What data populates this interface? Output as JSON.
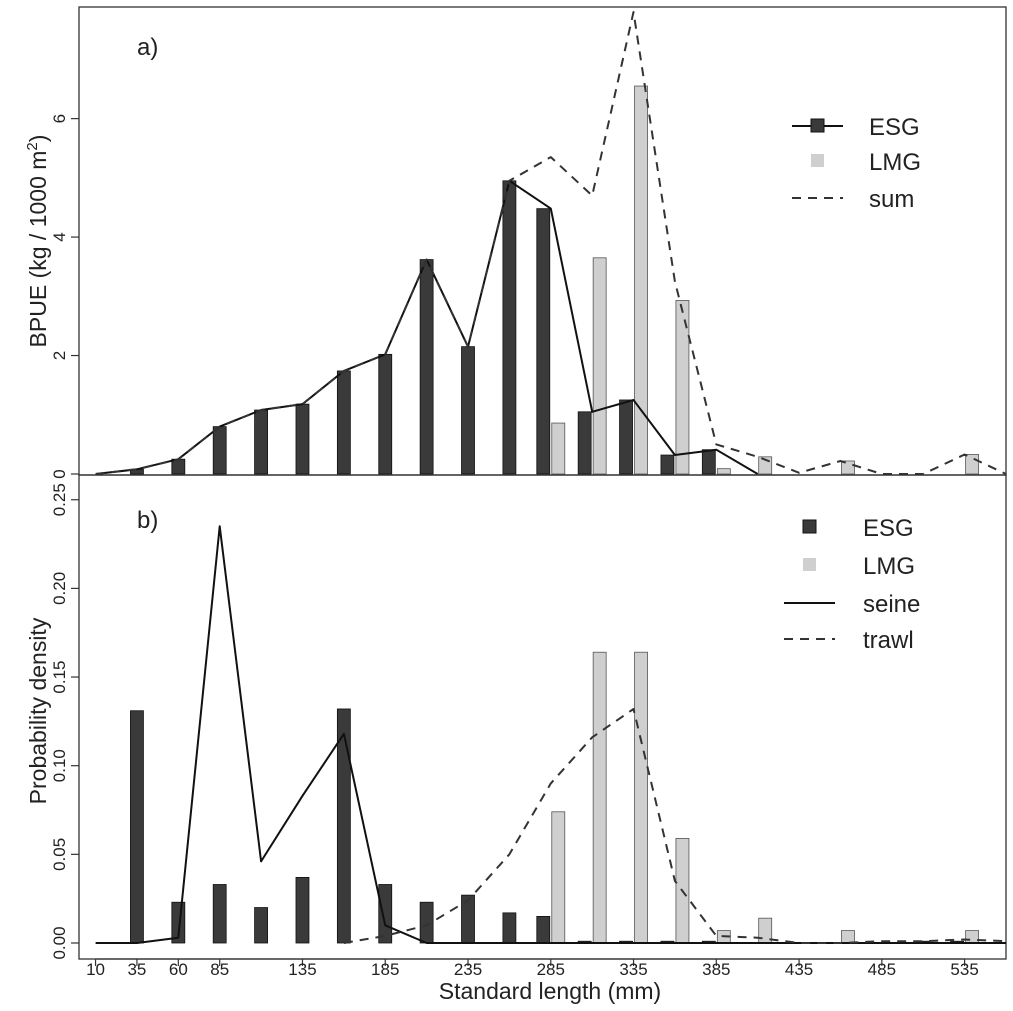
{
  "chart_data": [
    {
      "panel_label": "a)",
      "type": "bar",
      "ylabel": "BPUE (kg / 1000 m²)",
      "ylabel_main": "BPUE (kg / 1000 m",
      "ylabel_sup": "2",
      "ylabel_end": ")",
      "xlabel": "",
      "xlim": [
        0,
        560
      ],
      "ylim": [
        0,
        7.8
      ],
      "yticks": [
        0,
        2,
        4,
        6
      ],
      "ytick_labels": [
        "0",
        "2",
        "4",
        "6"
      ],
      "legend": {
        "position": "top-right",
        "entries": [
          {
            "label": "ESG",
            "style": "line-with-square"
          },
          {
            "label": "LMG",
            "style": "square"
          },
          {
            "label": "sum",
            "style": "dashed"
          }
        ]
      },
      "bars": {
        "ESG": {
          "x": [
            35,
            60,
            85,
            110,
            135,
            160,
            185,
            210,
            235,
            260,
            285,
            310,
            335,
            360,
            385
          ],
          "values": [
            0.08,
            0.25,
            0.8,
            1.08,
            1.18,
            1.74,
            2.02,
            3.62,
            2.15,
            4.95,
            4.48,
            1.05,
            1.25,
            0.32,
            0.41
          ]
        },
        "LMG": {
          "x": [
            285,
            310,
            335,
            360,
            385,
            410,
            460,
            535
          ],
          "values": [
            0.86,
            3.65,
            6.55,
            2.93,
            0.09,
            0.29,
            0.22,
            0.33
          ]
        }
      },
      "series": [
        {
          "name": "ESG",
          "x": [
            10,
            35,
            60,
            85,
            110,
            135,
            160,
            185,
            210,
            235,
            260,
            285,
            310,
            335,
            360,
            385,
            410
          ],
          "values": [
            0,
            0.08,
            0.25,
            0.8,
            1.08,
            1.18,
            1.74,
            2.02,
            3.62,
            2.15,
            4.95,
            4.48,
            1.05,
            1.25,
            0.32,
            0.41,
            0
          ]
        },
        {
          "name": "sum",
          "x": [
            10,
            35,
            60,
            85,
            110,
            135,
            160,
            185,
            210,
            235,
            260,
            285,
            310,
            335,
            360,
            385,
            410,
            435,
            460,
            485,
            510,
            535,
            560
          ],
          "values": [
            0,
            0.08,
            0.25,
            0.8,
            1.08,
            1.18,
            1.74,
            2.02,
            3.62,
            2.15,
            4.95,
            5.35,
            4.7,
            7.8,
            3.25,
            0.5,
            0.29,
            0.02,
            0.22,
            0,
            0,
            0.33,
            0
          ]
        }
      ]
    },
    {
      "panel_label": "b)",
      "type": "bar",
      "ylabel": "Probability density",
      "xlabel": "Standard length (mm)",
      "xlim": [
        0,
        560
      ],
      "ylim": [
        0,
        0.26
      ],
      "xticks": [
        10,
        35,
        60,
        85,
        135,
        185,
        235,
        285,
        335,
        385,
        435,
        485,
        535
      ],
      "xtick_labels": [
        "10",
        "35",
        "60",
        "85",
        "135",
        "185",
        "235",
        "285",
        "335",
        "385",
        "435",
        "485",
        "535"
      ],
      "yticks": [
        0,
        0.05,
        0.1,
        0.15,
        0.2,
        0.25
      ],
      "ytick_labels": [
        "0.00",
        "0.05",
        "0.10",
        "0.15",
        "0.20",
        "0.25"
      ],
      "legend": {
        "position": "top-right",
        "entries": [
          {
            "label": "ESG",
            "style": "square"
          },
          {
            "label": "LMG",
            "style": "square"
          },
          {
            "label": "seine",
            "style": "solid"
          },
          {
            "label": "trawl",
            "style": "dashed"
          }
        ]
      },
      "bars": {
        "ESG": {
          "x": [
            35,
            60,
            85,
            110,
            135,
            160,
            185,
            210,
            235,
            260,
            285,
            310,
            335,
            360,
            385,
            410,
            435,
            460,
            485,
            510,
            535
          ],
          "values": [
            0.131,
            0.023,
            0.033,
            0.02,
            0.037,
            0.132,
            0.033,
            0.023,
            0.027,
            0.017,
            0.015,
            0.001,
            0.001,
            0.001,
            0.001,
            0,
            0,
            0,
            0,
            0.001,
            0.001
          ]
        },
        "LMG": {
          "x": [
            285,
            310,
            335,
            360,
            385,
            410,
            460,
            535
          ],
          "values": [
            0.074,
            0.164,
            0.164,
            0.059,
            0.007,
            0.014,
            0.007,
            0.007
          ]
        }
      },
      "series": [
        {
          "name": "seine",
          "x": [
            10,
            35,
            60,
            85,
            110,
            135,
            160,
            185,
            210,
            235,
            260,
            285,
            310,
            335,
            360,
            385,
            410,
            435,
            460,
            485,
            510,
            535,
            560
          ],
          "values": [
            0,
            0,
            0.003,
            0.235,
            0.046,
            0.083,
            0.118,
            0.01,
            0,
            0,
            0,
            0,
            0,
            0,
            0,
            0,
            0,
            0,
            0,
            0,
            0,
            0,
            0
          ]
        },
        {
          "name": "trawl",
          "x": [
            160,
            185,
            210,
            235,
            260,
            285,
            310,
            335,
            360,
            385,
            410,
            435,
            460,
            485,
            510,
            535,
            560
          ],
          "values": [
            0,
            0.004,
            0.01,
            0.024,
            0.05,
            0.09,
            0.116,
            0.132,
            0.035,
            0.004,
            0.003,
            0,
            0,
            0.001,
            0.001,
            0.002,
            0.001
          ]
        }
      ]
    }
  ]
}
